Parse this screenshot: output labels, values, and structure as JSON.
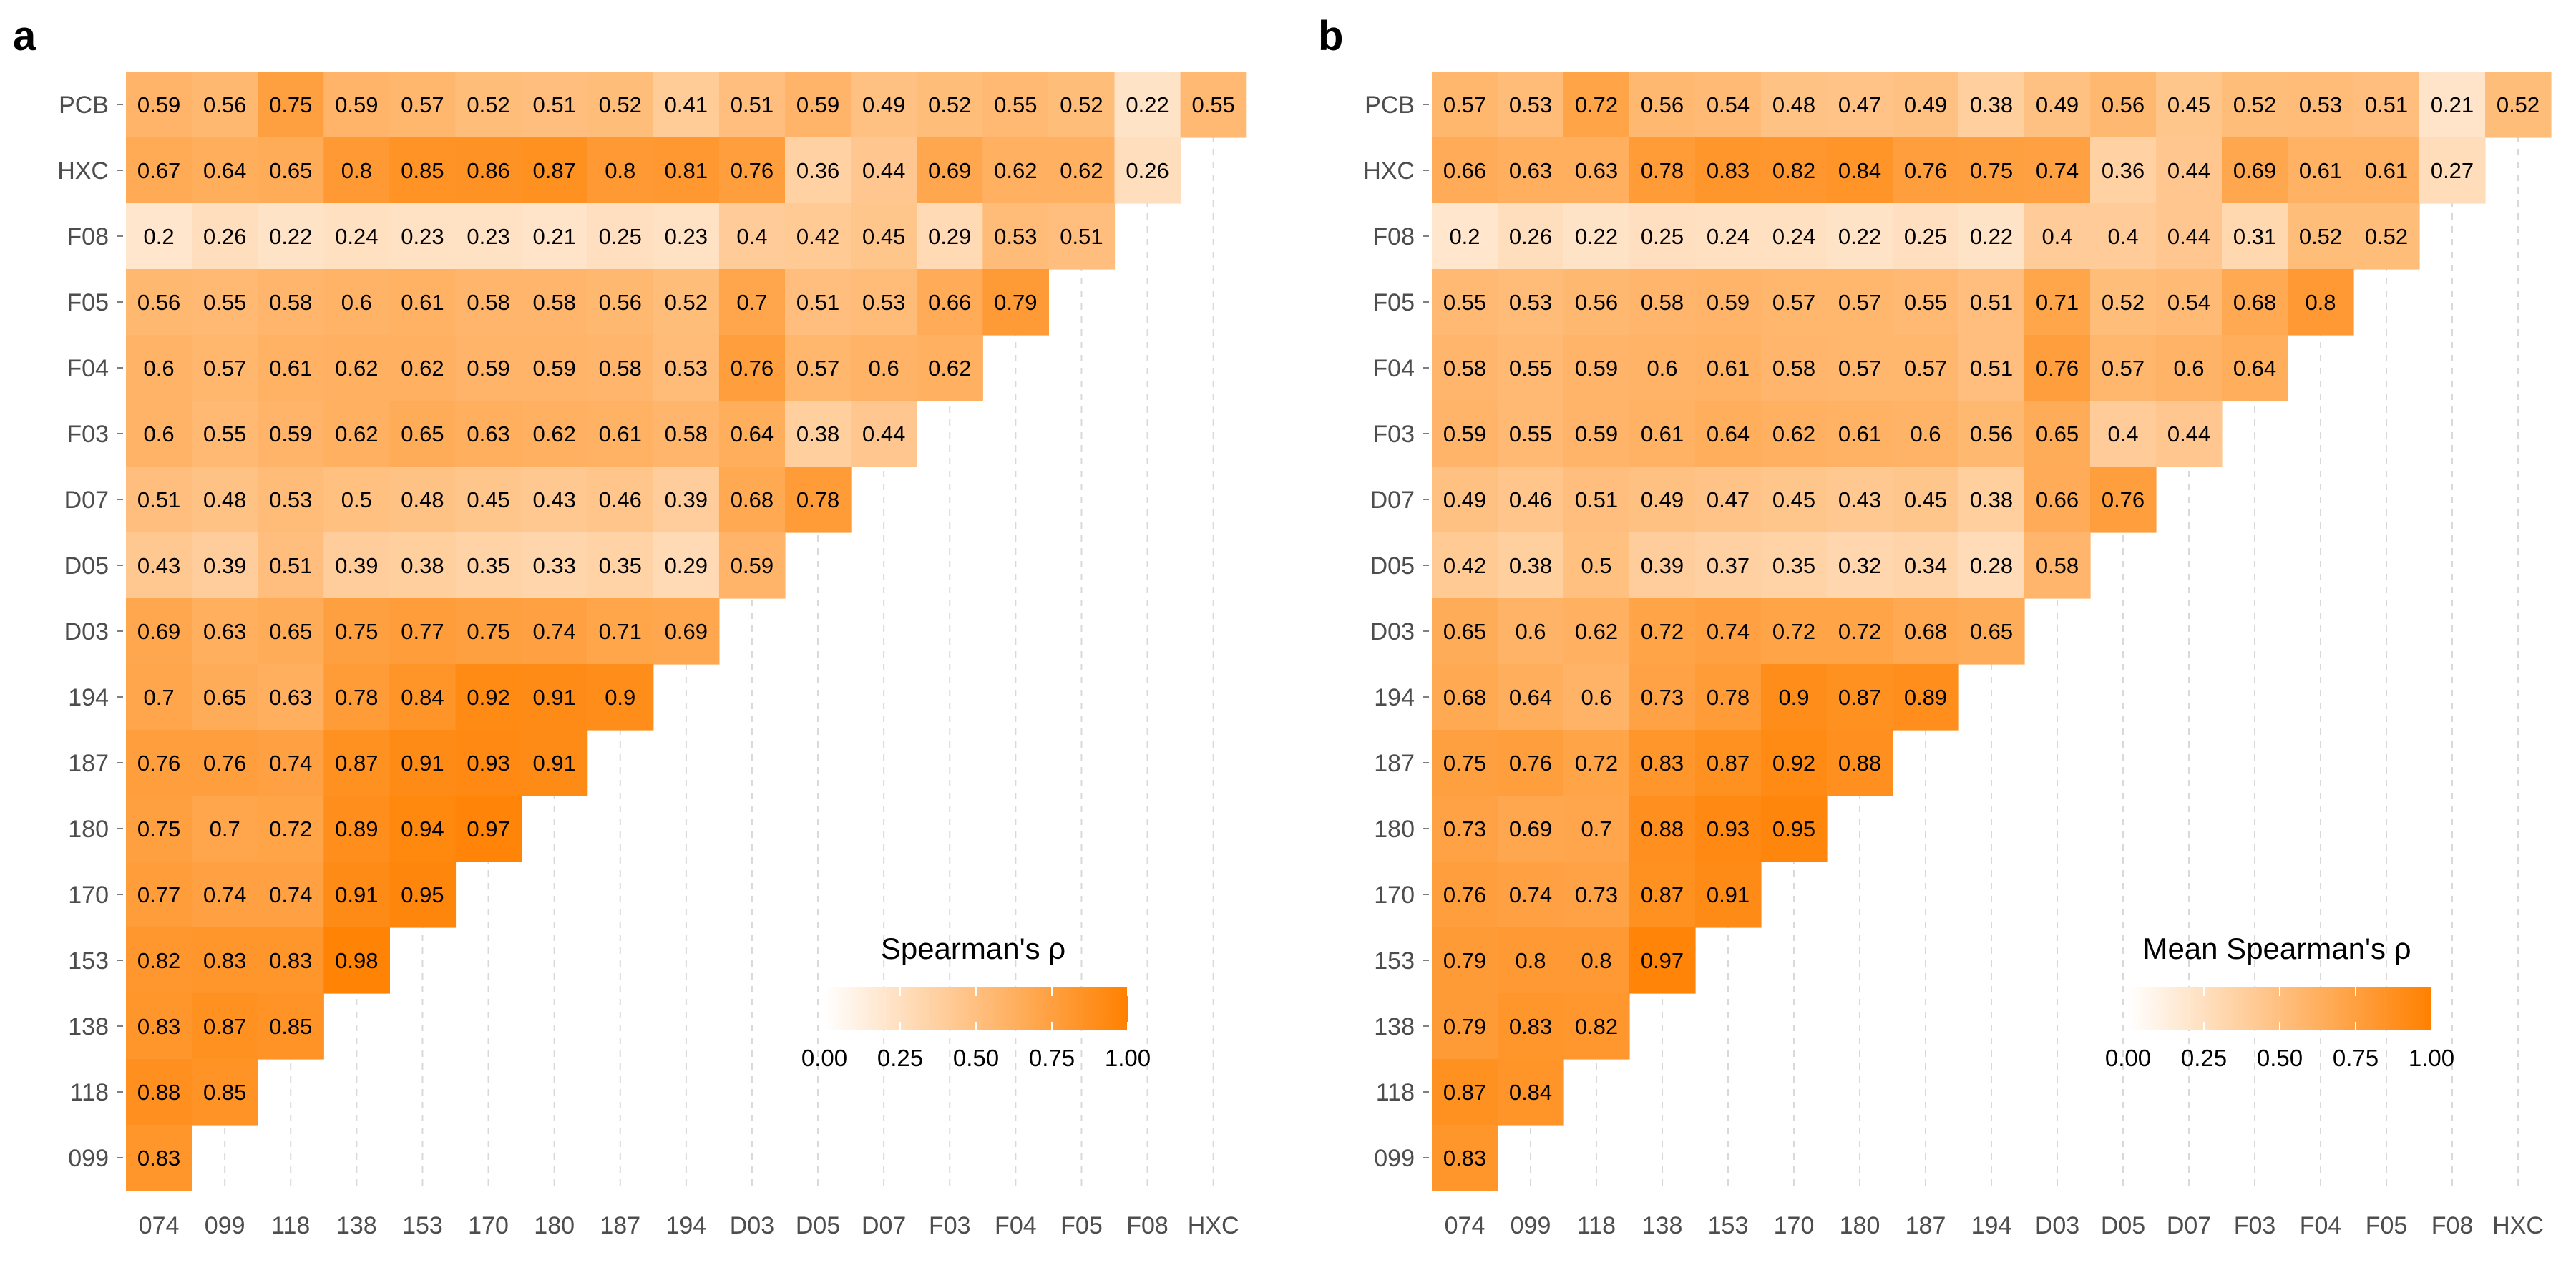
{
  "colors": {
    "low": "#ffffff",
    "high": "#ff8000",
    "grid": "#d9d9d9",
    "text": "#000000",
    "axis_text": "#4d4d4d"
  },
  "panels": [
    {
      "id": "a",
      "letter": "a",
      "legend_title": "Spearman's ρ",
      "legend_ticks": [
        "0.00",
        "0.25",
        "0.50",
        "0.75",
        "1.00"
      ]
    },
    {
      "id": "b",
      "letter": "b",
      "legend_title": "Mean Spearman's ρ",
      "legend_ticks": [
        "0.00",
        "0.25",
        "0.50",
        "0.75",
        "1.00"
      ]
    }
  ],
  "chart_data": [
    {
      "type": "heatmap",
      "title": "",
      "panel": "a",
      "legend_title": "Spearman's ρ",
      "scale": [
        0,
        1
      ],
      "x": [
        "074",
        "099",
        "118",
        "138",
        "153",
        "170",
        "180",
        "187",
        "194",
        "D03",
        "D05",
        "D07",
        "F03",
        "F04",
        "F05",
        "F08",
        "HXC"
      ],
      "y": [
        "PCB",
        "HXC",
        "F08",
        "F05",
        "F04",
        "F03",
        "D07",
        "D05",
        "D03",
        "194",
        "187",
        "180",
        "170",
        "153",
        "138",
        "118",
        "099"
      ],
      "values": [
        [
          0.59,
          0.56,
          0.75,
          0.59,
          0.57,
          0.52,
          0.51,
          0.52,
          0.41,
          0.51,
          0.59,
          0.49,
          0.52,
          0.55,
          0.52,
          0.22,
          0.55
        ],
        [
          0.67,
          0.64,
          0.65,
          0.8,
          0.85,
          0.86,
          0.87,
          0.8,
          0.81,
          0.76,
          0.36,
          0.44,
          0.69,
          0.62,
          0.62,
          0.26
        ],
        [
          0.2,
          0.26,
          0.22,
          0.24,
          0.23,
          0.23,
          0.21,
          0.25,
          0.23,
          0.4,
          0.42,
          0.45,
          0.29,
          0.53,
          0.51
        ],
        [
          0.56,
          0.55,
          0.58,
          0.6,
          0.61,
          0.58,
          0.58,
          0.56,
          0.52,
          0.7,
          0.51,
          0.53,
          0.66,
          0.79
        ],
        [
          0.6,
          0.57,
          0.61,
          0.62,
          0.62,
          0.59,
          0.59,
          0.58,
          0.53,
          0.76,
          0.57,
          0.6,
          0.62
        ],
        [
          0.6,
          0.55,
          0.59,
          0.62,
          0.65,
          0.63,
          0.62,
          0.61,
          0.58,
          0.64,
          0.38,
          0.44
        ],
        [
          0.51,
          0.48,
          0.53,
          0.5,
          0.48,
          0.45,
          0.43,
          0.46,
          0.39,
          0.68,
          0.78
        ],
        [
          0.43,
          0.39,
          0.51,
          0.39,
          0.38,
          0.35,
          0.33,
          0.35,
          0.29,
          0.59
        ],
        [
          0.69,
          0.63,
          0.65,
          0.75,
          0.77,
          0.75,
          0.74,
          0.71,
          0.69
        ],
        [
          0.7,
          0.65,
          0.63,
          0.78,
          0.84,
          0.92,
          0.91,
          0.9
        ],
        [
          0.76,
          0.76,
          0.74,
          0.87,
          0.91,
          0.93,
          0.91
        ],
        [
          0.75,
          0.7,
          0.72,
          0.89,
          0.94,
          0.97
        ],
        [
          0.77,
          0.74,
          0.74,
          0.91,
          0.95
        ],
        [
          0.82,
          0.83,
          0.83,
          0.98
        ],
        [
          0.83,
          0.87,
          0.85
        ],
        [
          0.88,
          0.85
        ],
        [
          0.83
        ]
      ]
    },
    {
      "type": "heatmap",
      "title": "",
      "panel": "b",
      "legend_title": "Mean Spearman's ρ",
      "scale": [
        0,
        1
      ],
      "x": [
        "074",
        "099",
        "118",
        "138",
        "153",
        "170",
        "180",
        "187",
        "194",
        "D03",
        "D05",
        "D07",
        "F03",
        "F04",
        "F05",
        "F08",
        "HXC"
      ],
      "y": [
        "PCB",
        "HXC",
        "F08",
        "F05",
        "F04",
        "F03",
        "D07",
        "D05",
        "D03",
        "194",
        "187",
        "180",
        "170",
        "153",
        "138",
        "118",
        "099"
      ],
      "values": [
        [
          0.57,
          0.53,
          0.72,
          0.56,
          0.54,
          0.48,
          0.47,
          0.49,
          0.38,
          0.49,
          0.56,
          0.45,
          0.52,
          0.53,
          0.51,
          0.21,
          0.52
        ],
        [
          0.66,
          0.63,
          0.63,
          0.78,
          0.83,
          0.82,
          0.84,
          0.76,
          0.75,
          0.74,
          0.36,
          0.44,
          0.69,
          0.61,
          0.61,
          0.27
        ],
        [
          0.2,
          0.26,
          0.22,
          0.25,
          0.24,
          0.24,
          0.22,
          0.25,
          0.22,
          0.4,
          0.4,
          0.44,
          0.31,
          0.52,
          0.52
        ],
        [
          0.55,
          0.53,
          0.56,
          0.58,
          0.59,
          0.57,
          0.57,
          0.55,
          0.51,
          0.71,
          0.52,
          0.54,
          0.68,
          0.8
        ],
        [
          0.58,
          0.55,
          0.59,
          0.6,
          0.61,
          0.58,
          0.57,
          0.57,
          0.51,
          0.76,
          0.57,
          0.6,
          0.64
        ],
        [
          0.59,
          0.55,
          0.59,
          0.61,
          0.64,
          0.62,
          0.61,
          0.6,
          0.56,
          0.65,
          0.4,
          0.44
        ],
        [
          0.49,
          0.46,
          0.51,
          0.49,
          0.47,
          0.45,
          0.43,
          0.45,
          0.38,
          0.66,
          0.76
        ],
        [
          0.42,
          0.38,
          0.5,
          0.39,
          0.37,
          0.35,
          0.32,
          0.34,
          0.28,
          0.58
        ],
        [
          0.65,
          0.6,
          0.62,
          0.72,
          0.74,
          0.72,
          0.72,
          0.68,
          0.65
        ],
        [
          0.68,
          0.64,
          0.6,
          0.73,
          0.78,
          0.9,
          0.87,
          0.89
        ],
        [
          0.75,
          0.76,
          0.72,
          0.83,
          0.87,
          0.92,
          0.88
        ],
        [
          0.73,
          0.69,
          0.7,
          0.88,
          0.93,
          0.95
        ],
        [
          0.76,
          0.74,
          0.73,
          0.87,
          0.91
        ],
        [
          0.79,
          0.8,
          0.8,
          0.97
        ],
        [
          0.79,
          0.83,
          0.82
        ],
        [
          0.87,
          0.84
        ],
        [
          0.83
        ]
      ]
    }
  ]
}
